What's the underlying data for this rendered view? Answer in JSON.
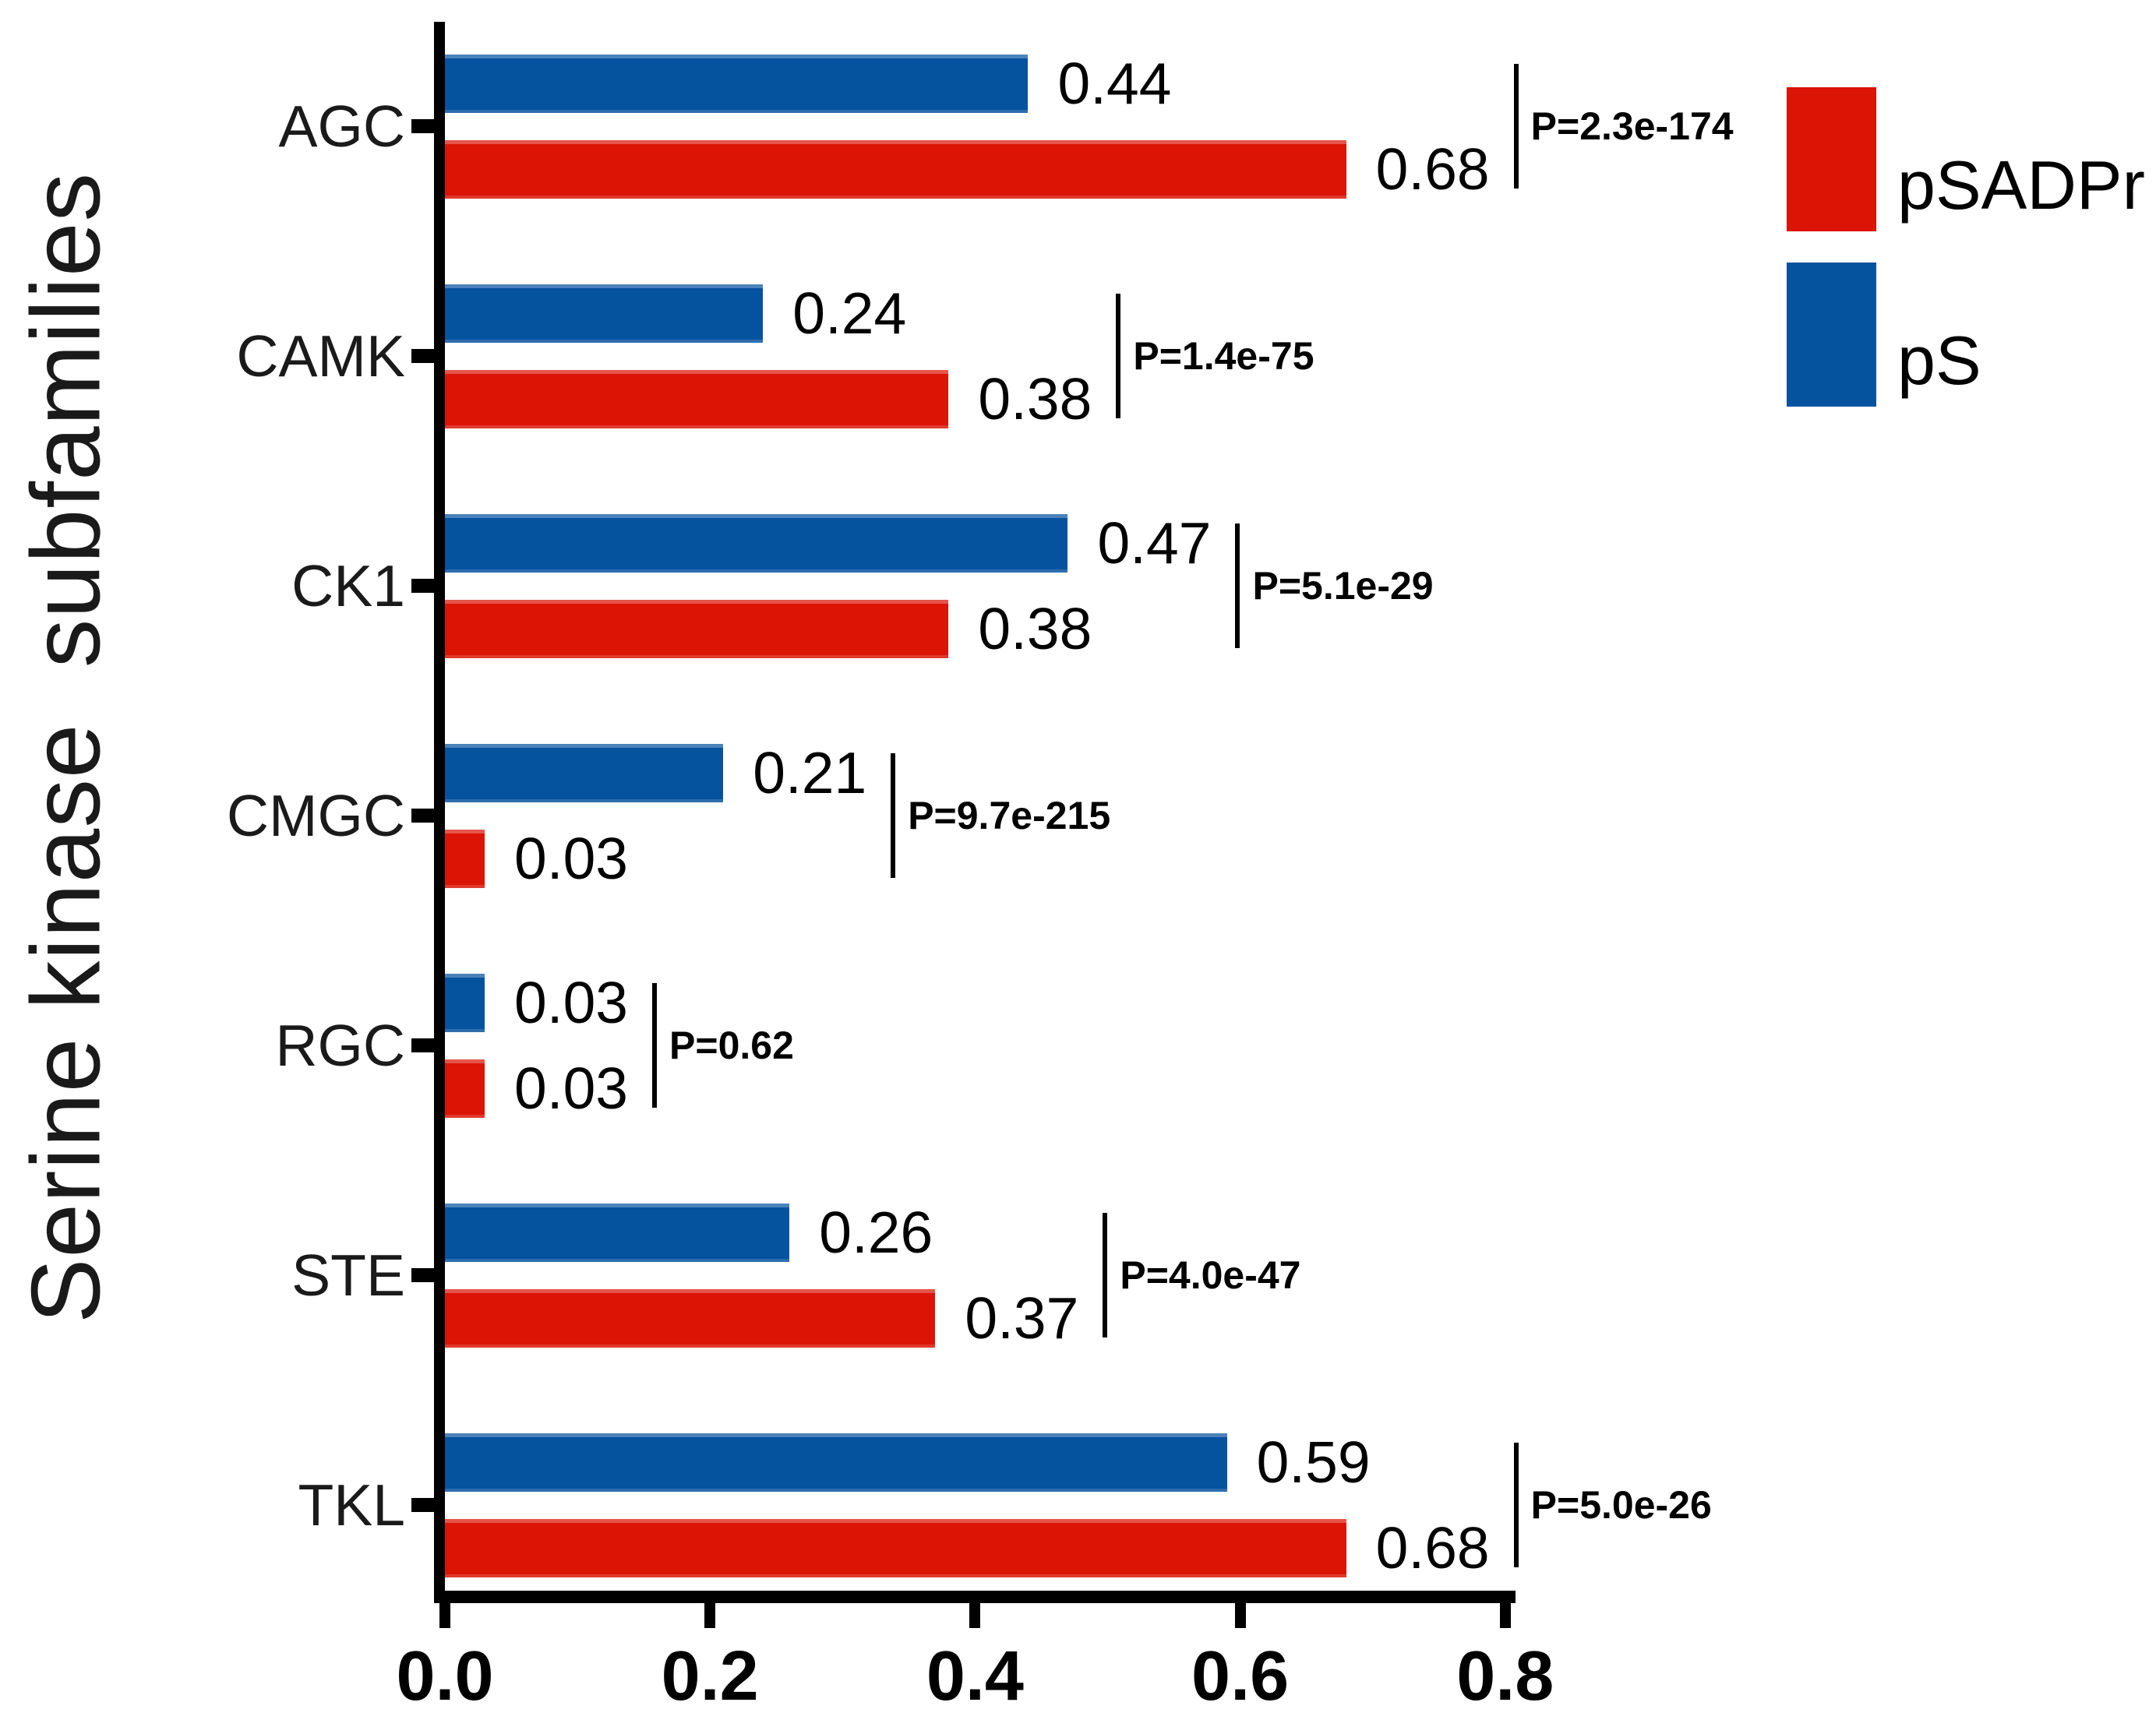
{
  "chart_data": {
    "type": "bar",
    "orientation": "horizontal",
    "title": "",
    "ylabel": "Serine kinase  subfamilies",
    "xlabel": "",
    "categories": [
      "AGC",
      "CAMK",
      "CK1",
      "CMGC",
      "RGC",
      "STE",
      "TKL"
    ],
    "series": [
      {
        "name": "pS",
        "color": "#05529F",
        "values": [
          0.44,
          0.24,
          0.47,
          0.21,
          0.03,
          0.26,
          0.59
        ],
        "labels": [
          "0.44",
          "0.24",
          "0.47",
          "0.21",
          "0.03",
          "0.26",
          "0.59"
        ]
      },
      {
        "name": "pSADPr",
        "color": "#DB1405",
        "values": [
          0.68,
          0.38,
          0.38,
          0.03,
          0.03,
          0.37,
          0.68
        ],
        "labels": [
          "0.68",
          "0.38",
          "0.38",
          "0.03",
          "0.03",
          "0.37",
          "0.68"
        ]
      }
    ],
    "bar_order_note": "for each category the blue pS bar is on top and the red pSADPr bar is below",
    "p_values": [
      "P=2.3e-174",
      "P=1.4e-75",
      "P=5.1e-29",
      "P=9.7e-215",
      "P=0.62",
      "P=4.0e-47",
      "P=5.0e-26"
    ],
    "x_ticks": [
      "0.0",
      "0.2",
      "0.4",
      "0.6",
      "0.8"
    ],
    "xlim": [
      0,
      0.8
    ],
    "grid": false,
    "legend_position": "top-right",
    "legend": [
      {
        "label": "pSADPr",
        "color": "#DB1405"
      },
      {
        "label": "pS",
        "color": "#05529F"
      }
    ]
  }
}
